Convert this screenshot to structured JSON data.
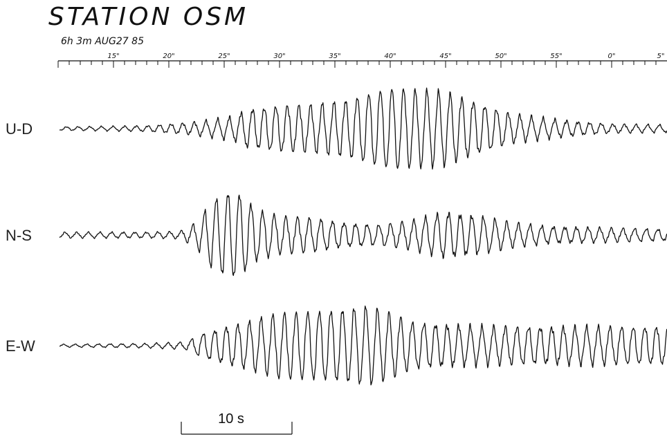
{
  "title": "STATION OSM",
  "start_time": "6h 3m AUG27   85",
  "time_axis": {
    "tick_labels": [
      "15\"",
      "20\"",
      "25\"",
      "30\"",
      "35\"",
      "40\"",
      "45\"",
      "50\"",
      "55\"",
      "0\"",
      "5\""
    ]
  },
  "scale_bar": {
    "label": "10 s",
    "duration_s": 10
  },
  "chart_data": {
    "type": "line",
    "title": "STATION OSM",
    "x_unit": "s",
    "xlim": [
      10,
      65
    ],
    "grid": false,
    "legend": "none",
    "series": [
      {
        "name": "U-D",
        "period_s": 1.05,
        "envelope": {
          "t": [
            10,
            14,
            18,
            20,
            22,
            24,
            26,
            27,
            30,
            33,
            36,
            39,
            40.5,
            42,
            45,
            48,
            51,
            54,
            57,
            60,
            65
          ],
          "amp": [
            0.05,
            0.06,
            0.08,
            0.12,
            0.16,
            0.22,
            0.3,
            0.45,
            0.55,
            0.55,
            0.65,
            0.9,
            0.95,
            0.9,
            0.85,
            0.6,
            0.35,
            0.25,
            0.18,
            0.12,
            0.1
          ]
        }
      },
      {
        "name": "N-S",
        "period_s": 1.05,
        "envelope": {
          "t": [
            10,
            14,
            18,
            21,
            22.5,
            24,
            25.5,
            26.5,
            28,
            30,
            33,
            36,
            39,
            42,
            45,
            48,
            51,
            54,
            57,
            60,
            65
          ],
          "amp": [
            0.08,
            0.08,
            0.08,
            0.1,
            0.3,
            0.8,
            1.0,
            0.95,
            0.6,
            0.45,
            0.4,
            0.3,
            0.25,
            0.35,
            0.55,
            0.45,
            0.3,
            0.22,
            0.2,
            0.18,
            0.15
          ]
        }
      },
      {
        "name": "E-W",
        "period_s": 1.05,
        "envelope": {
          "t": [
            10,
            14,
            18,
            21.5,
            23,
            25,
            27,
            30,
            33,
            36,
            38,
            40,
            42,
            45,
            48,
            51,
            54,
            57,
            60,
            65
          ],
          "amp": [
            0.04,
            0.05,
            0.06,
            0.1,
            0.3,
            0.45,
            0.55,
            0.75,
            0.8,
            0.85,
            0.9,
            0.75,
            0.55,
            0.5,
            0.45,
            0.45,
            0.45,
            0.45,
            0.45,
            0.45
          ]
        }
      }
    ]
  }
}
